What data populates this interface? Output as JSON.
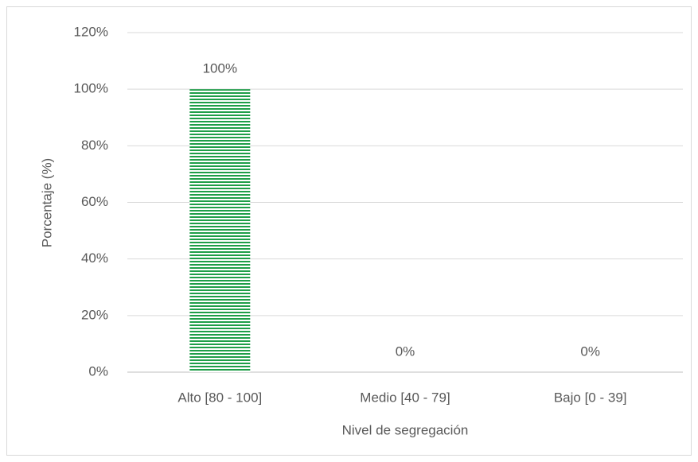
{
  "chart_data": {
    "type": "bar",
    "categories": [
      "Alto [80 - 100]",
      "Medio [40 - 79]",
      "Bajo [0 - 39]"
    ],
    "values": [
      100,
      0,
      0
    ],
    "value_labels": [
      "100%",
      "0%",
      "0%"
    ],
    "color": "#1e9e48",
    "xlabel": "Nivel de segregación",
    "ylabel": "Porcentaje (%)",
    "ylim": [
      0,
      120
    ],
    "yticks": [
      {
        "value": 0,
        "label": "0%"
      },
      {
        "value": 20,
        "label": "20%"
      },
      {
        "value": 40,
        "label": "40%"
      },
      {
        "value": 60,
        "label": "60%"
      },
      {
        "value": 80,
        "label": "80%"
      },
      {
        "value": 100,
        "label": "100%"
      },
      {
        "value": 120,
        "label": "120%"
      }
    ],
    "grid": true
  }
}
